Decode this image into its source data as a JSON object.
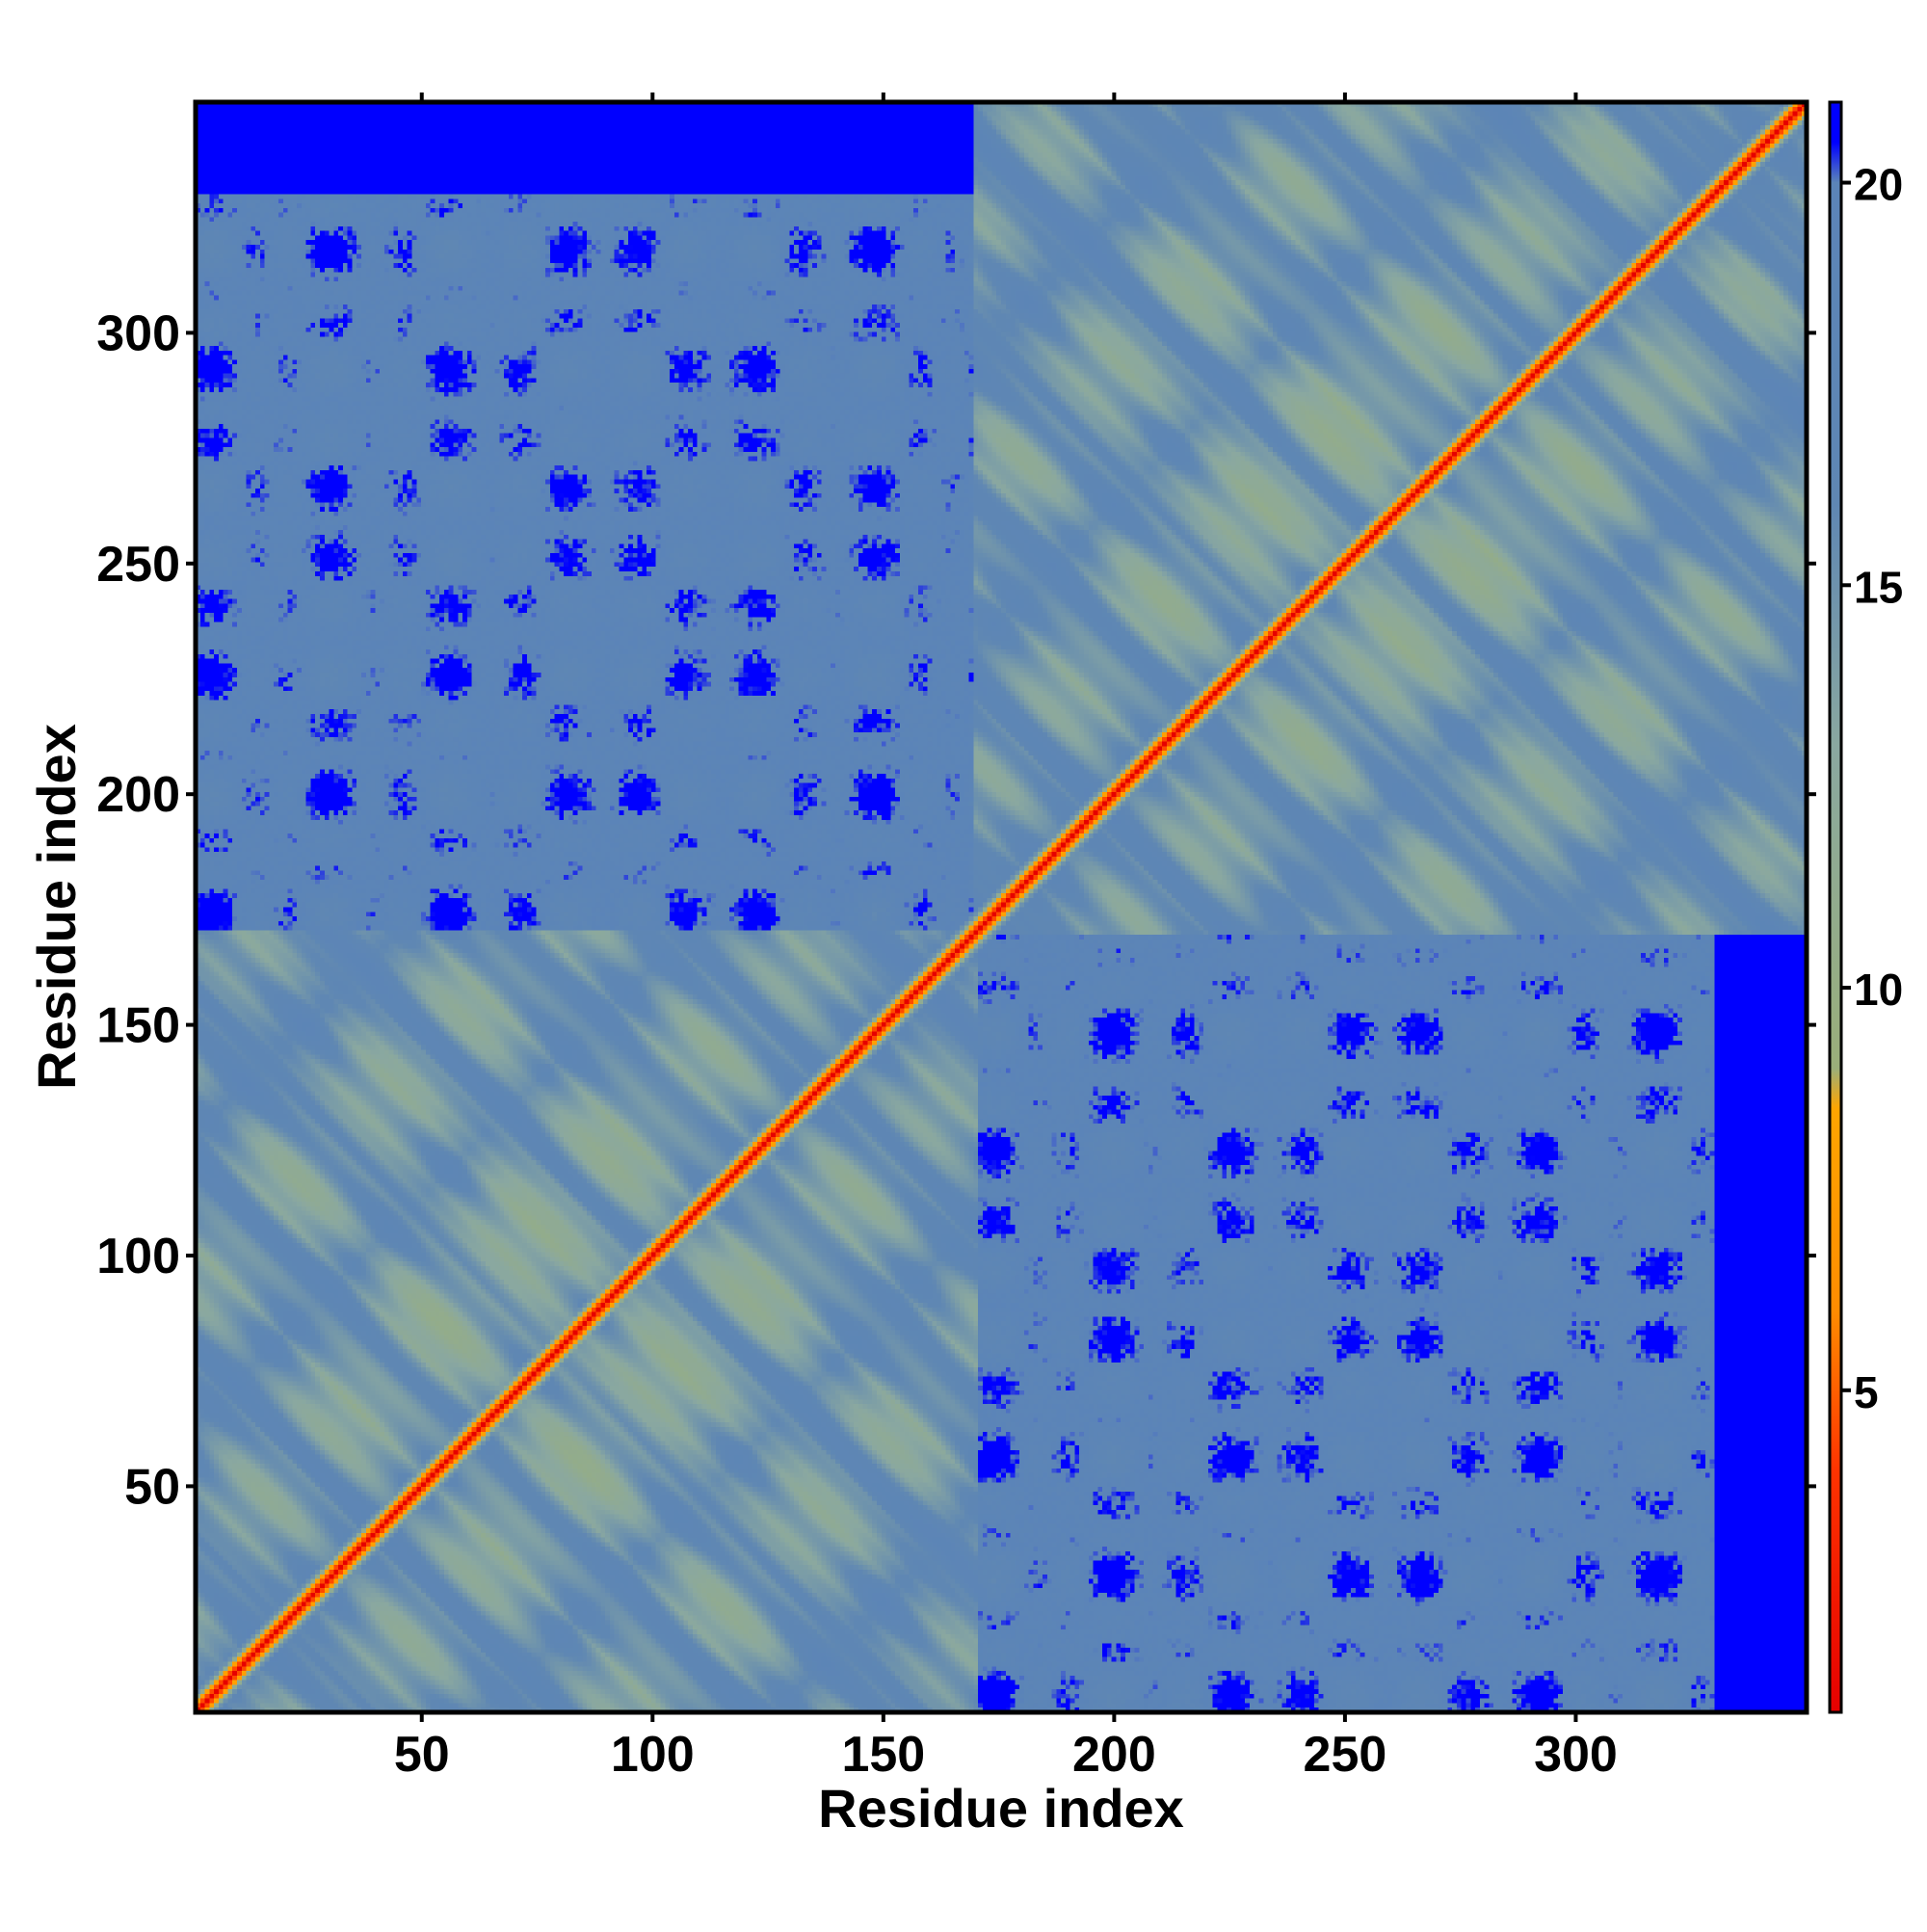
{
  "chart_data": {
    "type": "heatmap",
    "xlabel": "Residue index",
    "ylabel": "Residue index",
    "xlim": [
      1,
      350
    ],
    "ylim": [
      1,
      350
    ],
    "x_ticks": [
      50,
      100,
      150,
      200,
      250,
      300
    ],
    "y_ticks": [
      50,
      100,
      150,
      200,
      250,
      300
    ],
    "n_residues": 350,
    "domains": [
      [
        1,
        170
      ],
      [
        170,
        350
      ]
    ],
    "colorbar": {
      "range": [
        1,
        21
      ],
      "ticks": [
        5,
        10,
        15,
        20
      ],
      "stops": [
        {
          "value": 1,
          "color": "#e60000"
        },
        {
          "value": 4,
          "color": "#ff3300"
        },
        {
          "value": 6,
          "color": "#ff8c00"
        },
        {
          "value": 8.5,
          "color": "#ffa500"
        },
        {
          "value": 9,
          "color": "#9aaf7a"
        },
        {
          "value": 13,
          "color": "#8aa8a0"
        },
        {
          "value": 16,
          "color": "#5f87b3"
        },
        {
          "value": 20,
          "color": "#5b84b8"
        },
        {
          "value": 20.5,
          "color": "#0000ff"
        },
        {
          "value": 21,
          "color": "#0000ff"
        }
      ]
    }
  }
}
